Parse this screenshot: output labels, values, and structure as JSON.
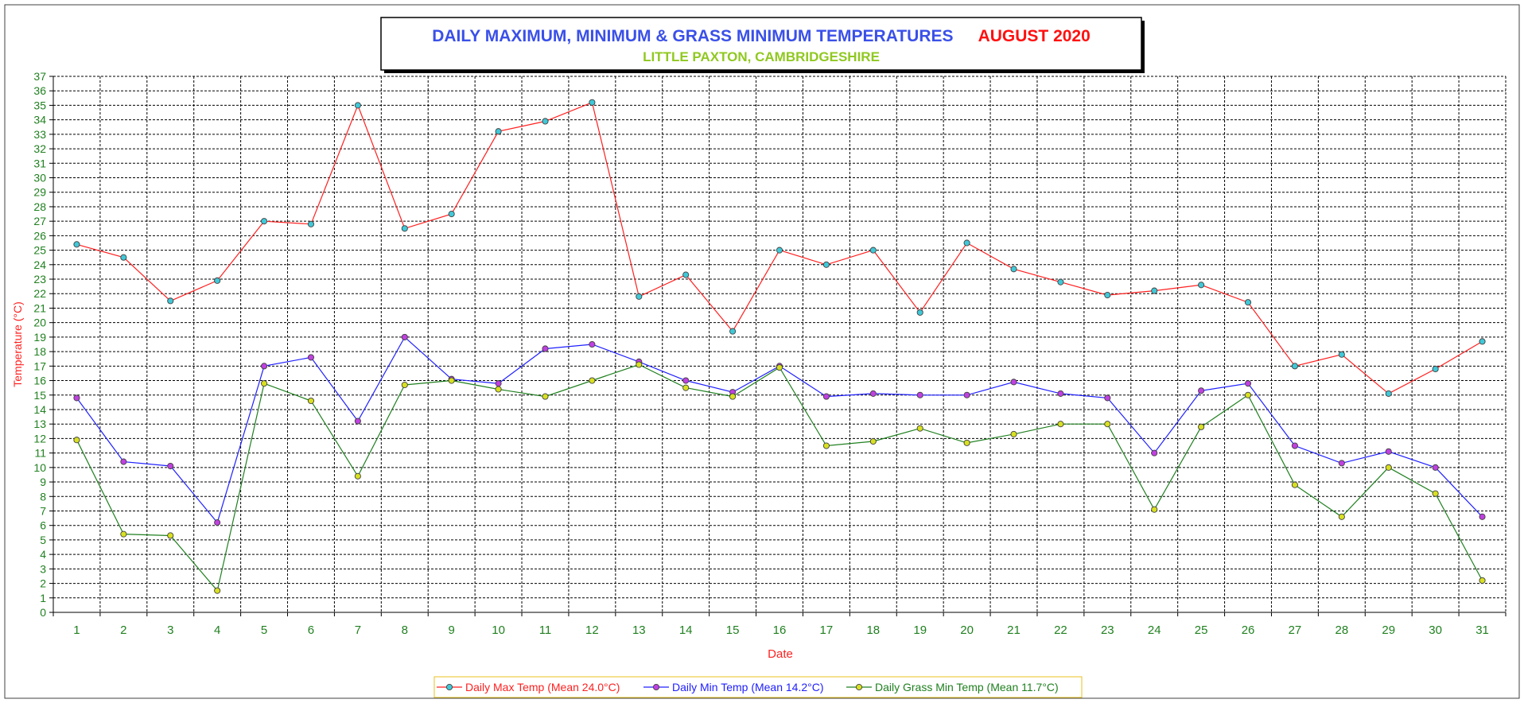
{
  "chart_data": {
    "type": "line",
    "title": "DAILY MAXIMUM, MINIMUM & GRASS MINIMUM TEMPERATURES",
    "title_period": "AUGUST 2020",
    "subtitle": "LITTLE PAXTON, CAMBRIDGESHIRE",
    "xlabel": "Date",
    "ylabel": "Temperature (°C)",
    "ylim": [
      0,
      37
    ],
    "y_step": 1,
    "grid": true,
    "legend_position": "bottom-center",
    "x": [
      1,
      2,
      3,
      4,
      5,
      6,
      7,
      8,
      9,
      10,
      11,
      12,
      13,
      14,
      15,
      16,
      17,
      18,
      19,
      20,
      21,
      22,
      23,
      24,
      25,
      26,
      27,
      28,
      29,
      30,
      31
    ],
    "series": [
      {
        "name": "Daily Max Temp (Mean 24.0°C)",
        "line_color": "#ff2020",
        "marker_color": "#40c8d8",
        "values": [
          25.4,
          24.5,
          21.5,
          22.9,
          27.0,
          26.8,
          35.0,
          26.5,
          27.5,
          33.2,
          33.9,
          35.2,
          21.8,
          23.3,
          19.4,
          25.0,
          24.0,
          25.0,
          20.7,
          25.5,
          23.7,
          22.8,
          21.9,
          22.2,
          22.6,
          21.4,
          17.0,
          17.8,
          15.1,
          16.8,
          18.7
        ]
      },
      {
        "name": "Daily Min Temp (Mean 14.2°C)",
        "line_color": "#2020ff",
        "marker_color": "#c040e0",
        "values": [
          14.8,
          10.4,
          10.1,
          6.2,
          17.0,
          17.6,
          13.2,
          19.0,
          16.1,
          15.8,
          18.2,
          18.5,
          17.3,
          16.0,
          15.2,
          17.0,
          14.9,
          15.1,
          15.0,
          15.0,
          15.9,
          15.1,
          14.8,
          11.0,
          15.3,
          15.8,
          11.5,
          10.3,
          11.1,
          10.0,
          6.6
        ]
      },
      {
        "name": "Daily Grass Min Temp (Mean 11.7°C)",
        "line_color": "#208020",
        "marker_color": "#d8e020",
        "values": [
          11.9,
          5.4,
          5.3,
          1.5,
          15.8,
          14.6,
          9.4,
          15.7,
          16.0,
          15.4,
          14.9,
          16.0,
          17.1,
          15.5,
          14.9,
          16.9,
          11.5,
          11.8,
          12.7,
          11.7,
          12.3,
          13.0,
          13.0,
          7.1,
          12.8,
          15.0,
          8.8,
          6.6,
          10.0,
          8.2,
          2.2
        ]
      }
    ],
    "colors": {
      "title": "#3a50e8",
      "title_period": "#ff1010",
      "subtitle": "#90c820",
      "axis_labels": "#208020",
      "axis_title": "#ff2020"
    }
  }
}
